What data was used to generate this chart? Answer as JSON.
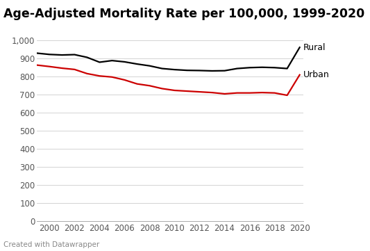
{
  "title": "Age-Adjusted Mortality Rate per 100,000, 1999-2020",
  "caption": "Created with Datawrapper",
  "years": [
    1999,
    2000,
    2001,
    2002,
    2003,
    2004,
    2005,
    2006,
    2007,
    2008,
    2009,
    2010,
    2011,
    2012,
    2013,
    2014,
    2015,
    2016,
    2017,
    2018,
    2019,
    2020
  ],
  "rural": [
    928,
    921,
    918,
    920,
    905,
    878,
    887,
    880,
    868,
    858,
    843,
    837,
    833,
    832,
    830,
    831,
    843,
    848,
    850,
    848,
    843,
    960
  ],
  "urban": [
    862,
    854,
    845,
    838,
    815,
    802,
    796,
    780,
    758,
    748,
    732,
    722,
    718,
    714,
    710,
    703,
    708,
    708,
    710,
    708,
    695,
    808
  ],
  "rural_color": "#000000",
  "urban_color": "#cc0000",
  "label_color": "#000000",
  "bg_color": "#ffffff",
  "grid_color": "#cccccc",
  "label_rural": "Rural",
  "label_urban": "Urban",
  "ylim": [
    0,
    1000
  ],
  "yticks": [
    0,
    100,
    200,
    300,
    400,
    500,
    600,
    700,
    800,
    900,
    1000
  ],
  "xticks": [
    2000,
    2002,
    2004,
    2006,
    2008,
    2010,
    2012,
    2014,
    2016,
    2018,
    2020
  ],
  "line_width": 1.6,
  "title_fontsize": 12.5,
  "tick_fontsize": 8.5,
  "label_fontsize": 9,
  "caption_fontsize": 7.5
}
